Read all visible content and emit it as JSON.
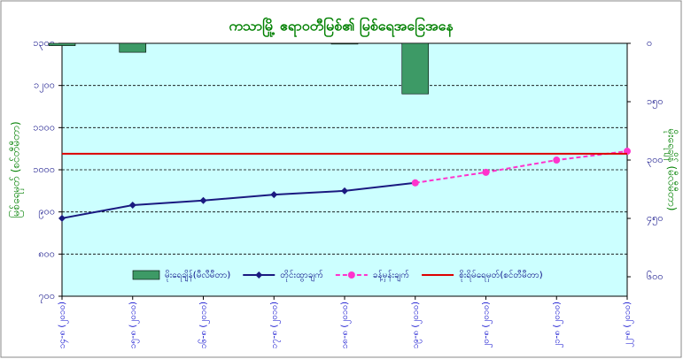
{
  "chart_data": {
    "type": "combo",
    "title": "ကသာမြို့ ဧရာဝတီမြစ်၏ မြစ်ရေအခြေအနေ",
    "y_label": "မြစ်ရေမှတ် (စင်တီမီတာ)",
    "y2_label": "မိုးရေချိန် (မီလီမီတာ)",
    "categories": [
      "၁၄-၈ (၂၀၁၀)",
      "၁၅-၈ (၂၀၁၀)",
      "၁၆-၈ (၂၀၁၀)",
      "၁၇-၈ (၂၀၁၀)",
      "၁၈-၈ (၂၀၁၀)",
      "၁၉-၈ (၂၀၁၀)",
      "၂၀-၈ (၂၀၁၀)",
      "၂၁-၈ (၂၀၁၀)",
      "၂၂-၈ (၂၀၁၀)"
    ],
    "ylim": [
      700,
      1300
    ],
    "yticks": [
      {
        "value": 700,
        "label": "၇၀၀"
      },
      {
        "value": 800,
        "label": "၈၀၀"
      },
      {
        "value": 900,
        "label": "၉၀၀"
      },
      {
        "value": 1000,
        "label": "၁၀၀၀"
      },
      {
        "value": 1100,
        "label": "၁၁၀၀"
      },
      {
        "value": 1200,
        "label": "၁၂၀၀"
      },
      {
        "value": 1300,
        "label": "၁၃၀၀"
      }
    ],
    "y2lim": [
      0,
      650
    ],
    "y2_reversed": true,
    "y2ticks": [
      {
        "value": 0,
        "label": "၀"
      },
      {
        "value": 150,
        "label": "၁၅၀"
      },
      {
        "value": 300,
        "label": "၃၀၀"
      },
      {
        "value": 450,
        "label": "၄၅၀"
      },
      {
        "value": 600,
        "label": "၆၀၀"
      }
    ],
    "grid": true,
    "series": [
      {
        "name": "မိုးရေချိန်(မီလီမီတာ)",
        "kind": "bar",
        "axis": "y2",
        "color": "#3d9a66",
        "values": [
          6,
          23,
          0,
          0,
          2,
          130,
          0,
          0,
          0
        ]
      },
      {
        "name": "တိုင်းထွာချက်",
        "kind": "line",
        "color": "#1a1a80",
        "marker": "diamond",
        "values": [
          885,
          916,
          927,
          941,
          950,
          969,
          null,
          null,
          null
        ]
      },
      {
        "name": "ခန့်မှန်းချက်",
        "kind": "line",
        "dashed": true,
        "color": "#ff33cc",
        "marker": "circle",
        "values": [
          null,
          null,
          null,
          null,
          null,
          969,
          994,
          1023,
          1044
        ]
      },
      {
        "name": "စိုးရိမ်ရေမှတ်(စင်တီမီတာ)",
        "kind": "line",
        "color": "#dd0000",
        "values": [
          1038,
          1038,
          1038,
          1038,
          1038,
          1038,
          1038,
          1038,
          1038
        ]
      }
    ]
  }
}
